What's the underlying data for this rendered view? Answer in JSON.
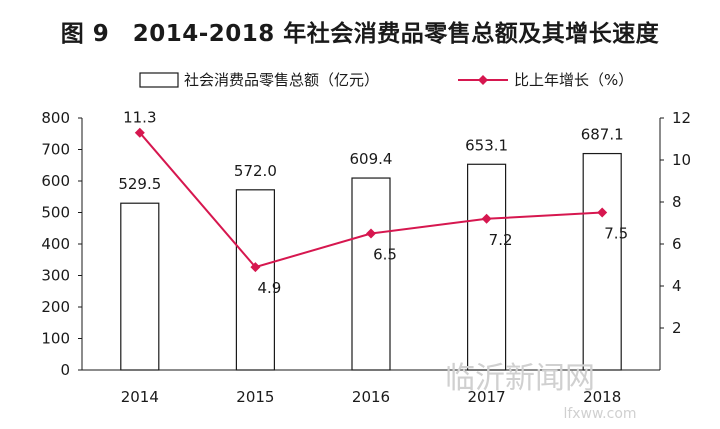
{
  "chart_data": {
    "type": "bar",
    "title": "图 9　2014-2018 年社会消费品零售总额及其增长速度",
    "categories": [
      "2014",
      "2015",
      "2016",
      "2017",
      "2018"
    ],
    "series": [
      {
        "name": "社会消费品零售总额（亿元）",
        "type": "bar",
        "axis": "left",
        "values": [
          529.5,
          572.0,
          609.4,
          653.1,
          687.1
        ],
        "labels": [
          "529.5",
          "572.0",
          "609.4",
          "653.1",
          "687.1"
        ]
      },
      {
        "name": "比上年增长（%）",
        "type": "line",
        "axis": "right",
        "color": "#d6174f",
        "values": [
          11.3,
          4.9,
          6.5,
          7.2,
          7.5
        ],
        "labels": [
          "11.3",
          "4.9",
          "6.5",
          "7.2",
          "7.5"
        ]
      }
    ],
    "y_left": {
      "min": 0,
      "max": 800,
      "ticks": [
        "0",
        "100",
        "200",
        "300",
        "400",
        "500",
        "600",
        "700",
        "800"
      ]
    },
    "y_right": {
      "min": 0,
      "max": 12,
      "ticks": [
        "2",
        "4",
        "6",
        "8",
        "10",
        "12"
      ]
    },
    "grid": false,
    "legend_position": "top"
  },
  "watermark": {
    "text": "临沂新闻网",
    "sub": "lfxww.com"
  },
  "colors": {
    "line": "#d6174f",
    "bar_fill": "#ffffff",
    "bar_stroke": "#1a1a1a",
    "axis": "#1a1a1a"
  }
}
